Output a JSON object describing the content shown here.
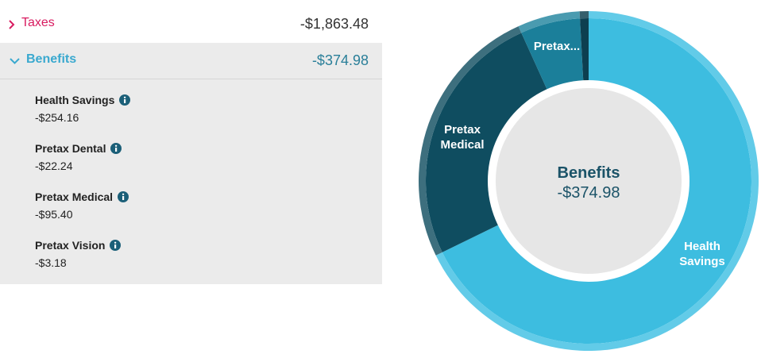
{
  "taxes": {
    "label": "Taxes",
    "amount": "-$1,863.48"
  },
  "benefits": {
    "label": "Benefits",
    "amount": "-$374.98",
    "items": [
      {
        "name": "Health Savings",
        "amount": "-$254.16"
      },
      {
        "name": "Pretax Dental",
        "amount": "-$22.24"
      },
      {
        "name": "Pretax Medical",
        "amount": "-$95.40"
      },
      {
        "name": "Pretax Vision",
        "amount": "-$3.18"
      }
    ]
  },
  "donut": {
    "center_title": "Benefits",
    "center_value": "-$374.98",
    "segments": [
      {
        "label": "Health Savings",
        "value": 254.16,
        "color": "#3dbde0",
        "ring_color": "#62cbe8"
      },
      {
        "label": "Pretax Medical",
        "value": 95.4,
        "color": "#0f4d60",
        "ring_color": "#3d6f7e"
      },
      {
        "label": "Pretax...",
        "value": 22.24,
        "color": "#1b7f9a",
        "ring_color": "#4a9bb0"
      },
      {
        "value": 3.18,
        "color": "#0d3f50",
        "ring_color": "#355f6c"
      }
    ]
  }
}
